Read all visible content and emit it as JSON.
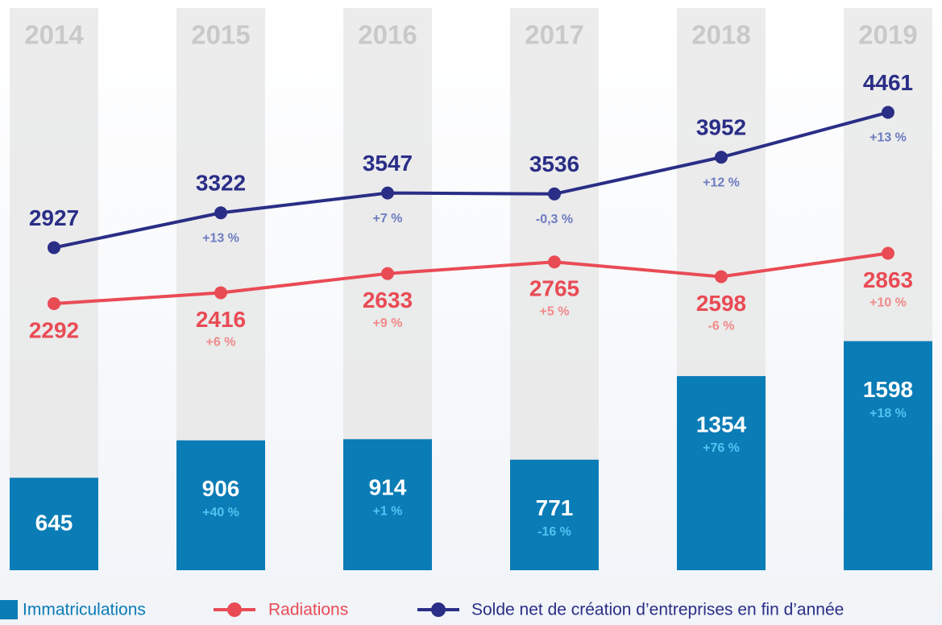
{
  "chart_data": {
    "type": "bar_line",
    "categories": [
      "2014",
      "2015",
      "2016",
      "2017",
      "2018",
      "2019"
    ],
    "series": [
      {
        "name": "Immatriculations",
        "type": "bar",
        "color": "#0a7cb6",
        "label_color": "#ffffff",
        "change_color": "#52c4f2",
        "values": [
          645,
          906,
          914,
          771,
          1354,
          1598
        ],
        "changes": [
          null,
          "+40 %",
          "+1 %",
          "-16 %",
          "+76 %",
          "+18 %"
        ]
      },
      {
        "name": "Radiations",
        "type": "line",
        "color": "#e94b55",
        "change_color": "#f08a8a",
        "values": [
          2292,
          2416,
          2633,
          2765,
          2598,
          2863
        ],
        "changes": [
          null,
          "+6 %",
          "+9 %",
          "+5 %",
          "-6 %",
          "+10 %"
        ]
      },
      {
        "name": "Solde net de création d’entreprises en fin d’année",
        "type": "line",
        "color": "#2a2e86",
        "change_color": "#6d7cc0",
        "values": [
          2927,
          3322,
          3547,
          3536,
          3952,
          4461
        ],
        "changes": [
          null,
          "+13 %",
          "+7 %",
          "-0,3 %",
          "+12 %",
          "+13 %"
        ]
      }
    ]
  }
}
